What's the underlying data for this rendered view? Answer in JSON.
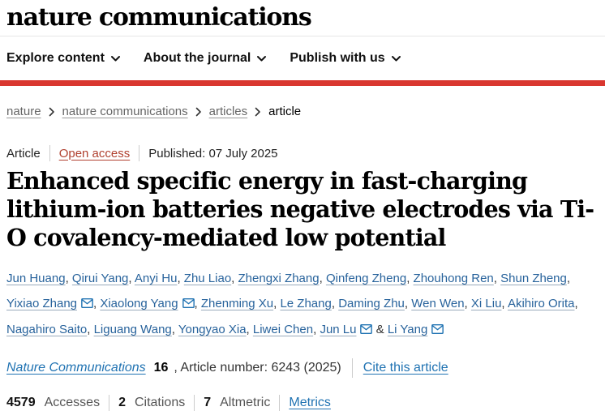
{
  "colors": {
    "brand-red": "#d9372f",
    "link-blue": "#1f72b2",
    "author-blue": "#28639c",
    "open-access": "#b0402f"
  },
  "header": {
    "logo": "nature communications",
    "nav": [
      {
        "label": "Explore content"
      },
      {
        "label": "About the journal"
      },
      {
        "label": "Publish with us"
      }
    ]
  },
  "breadcrumb": {
    "items": [
      {
        "label": "nature",
        "link": true
      },
      {
        "label": "nature communications",
        "link": true
      },
      {
        "label": "articles",
        "link": true
      },
      {
        "label": "article",
        "link": false
      }
    ]
  },
  "article_meta": {
    "type": "Article",
    "access": "Open access",
    "published": "Published: 07 July 2025"
  },
  "title": "Enhanced specific energy in fast-charging lithium-ion batteries negative electrodes via Ti-O covalency-mediated low potential",
  "authors": {
    "separator": ", ",
    "last_separator": " & ",
    "list": [
      {
        "name": "Jun Huang"
      },
      {
        "name": "Qirui Yang"
      },
      {
        "name": "Anyi Hu"
      },
      {
        "name": "Zhu Liao"
      },
      {
        "name": "Zhengxi Zhang"
      },
      {
        "name": "Qinfeng Zheng"
      },
      {
        "name": "Zhouhong Ren"
      },
      {
        "name": "Shun Zheng"
      },
      {
        "name": "Yixiao Zhang",
        "email": true
      },
      {
        "name": "Xiaolong Yang",
        "email": true
      },
      {
        "name": "Zhenming Xu"
      },
      {
        "name": "Le Zhang"
      },
      {
        "name": "Daming Zhu"
      },
      {
        "name": "Wen Wen"
      },
      {
        "name": "Xi Liu"
      },
      {
        "name": "Akihiro Orita"
      },
      {
        "name": "Nagahiro Saito"
      },
      {
        "name": "Liguang Wang"
      },
      {
        "name": "Yongyao Xia"
      },
      {
        "name": "Liwei Chen"
      },
      {
        "name": "Jun Lu",
        "email": true
      },
      {
        "name": "Li Yang",
        "email": true
      }
    ]
  },
  "citation": {
    "journal": "Nature Communications",
    "volume": "16",
    "article_info": ", Article number: 6243 (2025)",
    "cite_link": "Cite this article"
  },
  "metrics": {
    "items": [
      {
        "value": "4579",
        "label": "Accesses"
      },
      {
        "value": "2",
        "label": "Citations"
      },
      {
        "value": "7",
        "label": "Altmetric"
      }
    ],
    "metrics_link": "Metrics"
  }
}
